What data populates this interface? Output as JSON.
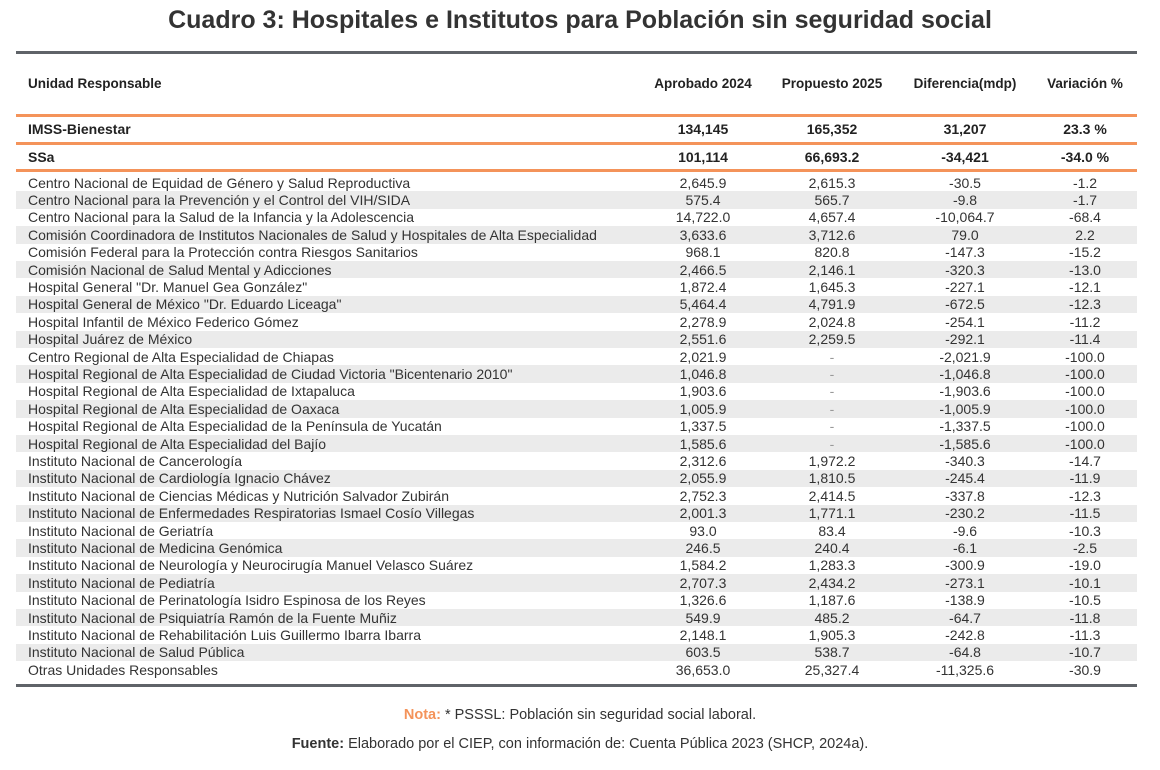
{
  "title": "Cuadro 3: Hospitales e Institutos para Población sin seguridad social",
  "header": [
    "Unidad Responsable",
    "Aprobado 2024",
    "Propuesto 2025",
    "Diferencia(mdp)",
    "Variación %"
  ],
  "summary_rows": [
    [
      "IMSS-Bienestar",
      "134,145",
      "165,352",
      "31,207",
      "23.3 %"
    ],
    [
      "SSa",
      "101,114",
      "66,693.2",
      "-34,421",
      "-34.0 %"
    ]
  ],
  "rows": [
    [
      "Centro Nacional de Equidad de Género y Salud Reproductiva",
      "2,645.9",
      "2,615.3",
      "-30.5",
      "-1.2"
    ],
    [
      "Centro Nacional para la Prevención y el Control del VIH/SIDA",
      "575.4",
      "565.7",
      "-9.8",
      "-1.7"
    ],
    [
      "Centro Nacional para la Salud de la Infancia y la Adolescencia",
      "14,722.0",
      "4,657.4",
      "-10,064.7",
      "-68.4"
    ],
    [
      "Comisión Coordinadora de Institutos Nacionales de Salud y Hospitales de Alta Especialidad",
      "3,633.6",
      "3,712.6",
      "79.0",
      "2.2"
    ],
    [
      "Comisión Federal para la Protección contra Riesgos Sanitarios",
      "968.1",
      "820.8",
      "-147.3",
      "-15.2"
    ],
    [
      "Comisión Nacional de Salud Mental y Adicciones",
      "2,466.5",
      "2,146.1",
      "-320.3",
      "-13.0"
    ],
    [
      "Hospital General \"Dr. Manuel Gea González\"",
      "1,872.4",
      "1,645.3",
      "-227.1",
      "-12.1"
    ],
    [
      "Hospital General de México \"Dr. Eduardo Liceaga\"",
      "5,464.4",
      "4,791.9",
      "-672.5",
      "-12.3"
    ],
    [
      "Hospital Infantil de México Federico Gómez",
      "2,278.9",
      "2,024.8",
      "-254.1",
      "-11.2"
    ],
    [
      "Hospital Juárez de México",
      "2,551.6",
      "2,259.5",
      "-292.1",
      "-11.4"
    ],
    [
      "Centro Regional de Alta Especialidad de Chiapas",
      "2,021.9",
      "-",
      "-2,021.9",
      "-100.0"
    ],
    [
      "Hospital Regional de Alta Especialidad de Ciudad Victoria \"Bicentenario 2010\"",
      "1,046.8",
      "-",
      "-1,046.8",
      "-100.0"
    ],
    [
      "Hospital Regional de Alta Especialidad de Ixtapaluca",
      "1,903.6",
      "-",
      "-1,903.6",
      "-100.0"
    ],
    [
      "Hospital Regional de Alta Especialidad de Oaxaca",
      "1,005.9",
      "-",
      "-1,005.9",
      "-100.0"
    ],
    [
      "Hospital Regional de Alta Especialidad de la Península de Yucatán",
      "1,337.5",
      "-",
      "-1,337.5",
      "-100.0"
    ],
    [
      "Hospital Regional de Alta Especialidad del Bajío",
      "1,585.6",
      "-",
      "-1,585.6",
      "-100.0"
    ],
    [
      "Instituto Nacional de Cancerología",
      "2,312.6",
      "1,972.2",
      "-340.3",
      "-14.7"
    ],
    [
      "Instituto Nacional de Cardiología Ignacio Chávez",
      "2,055.9",
      "1,810.5",
      "-245.4",
      "-11.9"
    ],
    [
      "Instituto Nacional de Ciencias Médicas y Nutrición Salvador Zubirán",
      "2,752.3",
      "2,414.5",
      "-337.8",
      "-12.3"
    ],
    [
      "Instituto Nacional de Enfermedades Respiratorias Ismael Cosío Villegas",
      "2,001.3",
      "1,771.1",
      "-230.2",
      "-11.5"
    ],
    [
      "Instituto Nacional de Geriatría",
      "93.0",
      "83.4",
      "-9.6",
      "-10.3"
    ],
    [
      "Instituto Nacional de Medicina Genómica",
      "246.5",
      "240.4",
      "-6.1",
      "-2.5"
    ],
    [
      "Instituto Nacional de Neurología y Neurocirugía Manuel Velasco Suárez",
      "1,584.2",
      "1,283.3",
      "-300.9",
      "-19.0"
    ],
    [
      "Instituto Nacional de Pediatría",
      "2,707.3",
      "2,434.2",
      "-273.1",
      "-10.1"
    ],
    [
      "Instituto Nacional de Perinatología Isidro Espinosa de los Reyes",
      "1,326.6",
      "1,187.6",
      "-138.9",
      "-10.5"
    ],
    [
      "Instituto Nacional de Psiquiatría Ramón de la Fuente Muñiz",
      "549.9",
      "485.2",
      "-64.7",
      "-11.8"
    ],
    [
      "Instituto Nacional de Rehabilitación Luis Guillermo Ibarra Ibarra",
      "2,148.1",
      "1,905.3",
      "-242.8",
      "-11.3"
    ],
    [
      "Instituto Nacional de Salud Pública",
      "603.5",
      "538.7",
      "-64.8",
      "-10.7"
    ],
    [
      "Otras Unidades Responsables",
      "36,653.0",
      "25,327.4",
      "-11,325.6",
      "-30.9"
    ]
  ],
  "note": {
    "label": "Nota:",
    "text": "* PSSSL: Población sin seguridad social laboral."
  },
  "source": {
    "label": "Fuente:",
    "text": "Elaborado por el CIEP, con información de: Cuenta Pública 2023 (SHCP, 2024a)."
  },
  "colors": {
    "accent": "#f4935a",
    "rule": "#5f6368",
    "stripe": "#ebebeb"
  }
}
